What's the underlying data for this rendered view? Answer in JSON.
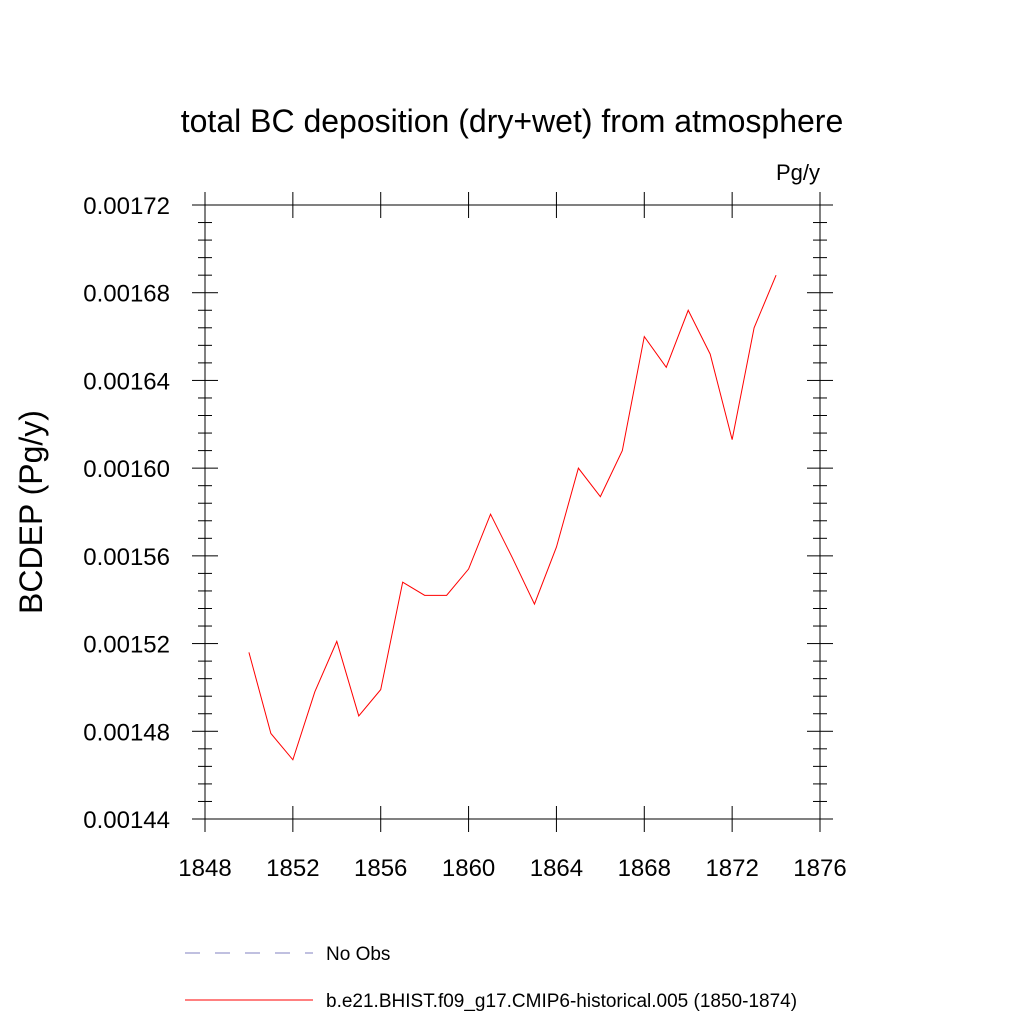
{
  "chart_data": {
    "type": "line",
    "title": "total BC deposition (dry+wet) from atmosphere",
    "units_label": "Pg/y",
    "ylabel": "BCDEP  (Pg/y)",
    "xlabel": "",
    "xlim": [
      1848,
      1876
    ],
    "ylim": [
      0.00144,
      0.00172
    ],
    "x_ticks": [
      "1848",
      "1852",
      "1856",
      "1860",
      "1864",
      "1868",
      "1872",
      "1876"
    ],
    "y_ticks": [
      "0.00144",
      "0.00148",
      "0.00152",
      "0.00156",
      "0.00160",
      "0.00164",
      "0.00168",
      "0.00172"
    ],
    "grid": false,
    "legend_position": "bottom",
    "series": [
      {
        "name": "b.e21.BHIST.f09_g17.CMIP6-historical.005 (1850-1874)",
        "color": "#ff0000",
        "style": "solid",
        "x": [
          1850,
          1851,
          1852,
          1853,
          1854,
          1855,
          1856,
          1857,
          1858,
          1859,
          1860,
          1861,
          1862,
          1863,
          1864,
          1865,
          1866,
          1867,
          1868,
          1869,
          1870,
          1871,
          1872,
          1873,
          1874
        ],
        "values": [
          0.001516,
          0.001479,
          0.001467,
          0.001498,
          0.001521,
          0.001487,
          0.001499,
          0.001548,
          0.001542,
          0.001542,
          0.001554,
          0.001579,
          0.001559,
          0.001538,
          0.001564,
          0.0016,
          0.001587,
          0.001608,
          0.00166,
          0.001646,
          0.001672,
          0.001652,
          0.001613,
          0.001664,
          0.001688
        ]
      }
    ],
    "legend": [
      {
        "label": "No Obs",
        "color": "#8080c0",
        "style": "dashed"
      },
      {
        "label": "b.e21.BHIST.f09_g17.CMIP6-historical.005 (1850-1874)",
        "color": "#ff0000",
        "style": "solid"
      }
    ]
  }
}
